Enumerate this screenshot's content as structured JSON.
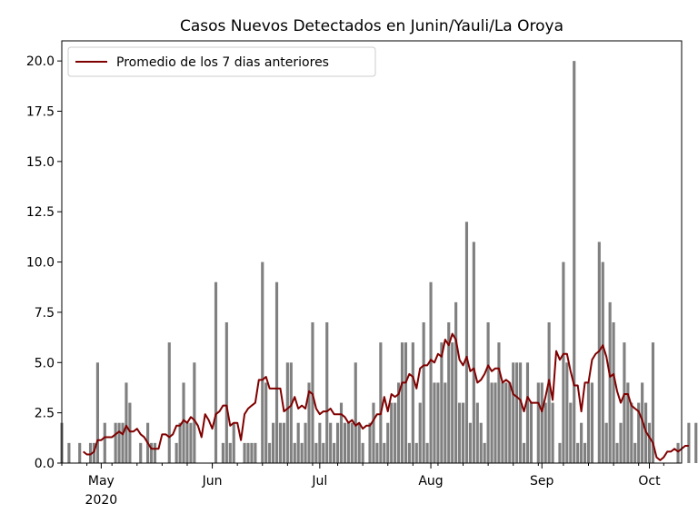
{
  "chart_data": {
    "type": "bar",
    "title": "Casos Nuevos Detectados en Junin/Yauli/La Oroya",
    "xlabel": "",
    "ylabel": "",
    "ylim": [
      0,
      21
    ],
    "x_start": "2020-04-20",
    "x_end": "2020-10-10",
    "y_ticks": [
      "0.0",
      "2.5",
      "5.0",
      "7.5",
      "10.0",
      "12.5",
      "15.0",
      "17.5",
      "20.0"
    ],
    "x_ticks": [
      {
        "date": "2020-05-01",
        "label": "May",
        "sublabel": "2020"
      },
      {
        "date": "2020-06-01",
        "label": "Jun",
        "sublabel": ""
      },
      {
        "date": "2020-07-01",
        "label": "Jul",
        "sublabel": ""
      },
      {
        "date": "2020-08-01",
        "label": "Aug",
        "sublabel": ""
      },
      {
        "date": "2020-09-01",
        "label": "Sep",
        "sublabel": ""
      },
      {
        "date": "2020-10-01",
        "label": "Oct",
        "sublabel": ""
      }
    ],
    "legend": {
      "placement": "top-left",
      "entries": [
        "Promedio de los 7 dias anteriores"
      ]
    },
    "grid": false,
    "colors": {
      "bars": "#808080",
      "line": "#800000"
    },
    "series": [
      {
        "name": "Casos nuevos",
        "kind": "bar",
        "start_date": "2020-04-20",
        "values": [
          2,
          0,
          1,
          0,
          0,
          1,
          0,
          0,
          1,
          1,
          5,
          0,
          2,
          0,
          0,
          2,
          2,
          2,
          4,
          3,
          0,
          0,
          1,
          0,
          2,
          1,
          1,
          0,
          0,
          0,
          6,
          0,
          1,
          2,
          4,
          2,
          2,
          5,
          0,
          0,
          0,
          0,
          0,
          9,
          0,
          1,
          7,
          1,
          2,
          0,
          0,
          1,
          1,
          1,
          1,
          0,
          10,
          4,
          1,
          2,
          9,
          2,
          2,
          5,
          5,
          1,
          2,
          1,
          2,
          4,
          7,
          1,
          2,
          1,
          7,
          2,
          1,
          2,
          3,
          2,
          2,
          2,
          5,
          2,
          1,
          0,
          2,
          3,
          1,
          6,
          1,
          2,
          3,
          3,
          4,
          6,
          6,
          1,
          6,
          1,
          3,
          7,
          1,
          9,
          4,
          4,
          6,
          4,
          7,
          6,
          8,
          3,
          3,
          12,
          2,
          11,
          3,
          2,
          1,
          7,
          4,
          4,
          6,
          4,
          4,
          4,
          5,
          5,
          5,
          1,
          5,
          3,
          0,
          4,
          4,
          3,
          7,
          3,
          0,
          1,
          10,
          5,
          3,
          20,
          1,
          2,
          1,
          4,
          4,
          0,
          11,
          10,
          2,
          8,
          7,
          1,
          2,
          6,
          4,
          3,
          1,
          3,
          4,
          3,
          2,
          6,
          0,
          0,
          0,
          0,
          0,
          0,
          1,
          0,
          0,
          2,
          0,
          2,
          0,
          1,
          1,
          0,
          2
        ]
      },
      {
        "name": "Promedio de los 7 dias anteriores",
        "kind": "line",
        "start_date": "2020-04-26",
        "values": [
          0.57,
          0.43,
          0.43,
          0.57,
          1.14,
          1.14,
          1.29,
          1.29,
          1.29,
          1.43,
          1.57,
          1.43,
          1.86,
          1.57,
          1.57,
          1.71,
          1.43,
          1.29,
          1.0,
          0.71,
          0.71,
          0.71,
          1.43,
          1.43,
          1.29,
          1.43,
          1.86,
          1.86,
          2.14,
          2.0,
          2.29,
          2.14,
          1.86,
          1.29,
          2.43,
          2.14,
          1.71,
          2.43,
          2.57,
          2.86,
          2.86,
          1.86,
          2.0,
          2.0,
          1.14,
          2.43,
          2.71,
          2.86,
          3.0,
          4.14,
          4.14,
          4.29,
          3.71,
          3.71,
          3.71,
          3.71,
          2.57,
          2.71,
          2.86,
          3.29,
          2.71,
          2.86,
          2.71,
          3.57,
          3.43,
          2.71,
          2.43,
          2.57,
          2.57,
          2.71,
          2.43,
          2.43,
          2.43,
          2.29,
          2.0,
          2.14,
          1.86,
          2.0,
          1.71,
          1.86,
          1.86,
          2.14,
          2.43,
          2.43,
          3.29,
          2.57,
          3.43,
          3.29,
          3.43,
          4.0,
          4.0,
          4.43,
          4.29,
          3.71,
          4.71,
          4.86,
          4.86,
          5.14,
          5.0,
          5.43,
          5.29,
          6.14,
          5.86,
          6.43,
          6.14,
          5.14,
          4.86,
          5.29,
          4.57,
          4.71,
          4.0,
          4.14,
          4.43,
          4.86,
          4.57,
          4.71,
          4.71,
          4.0,
          4.14,
          4.0,
          3.43,
          3.29,
          3.14,
          2.57,
          3.29,
          3.0,
          3.0,
          3.0,
          2.57,
          3.29,
          4.14,
          3.14,
          5.57,
          5.14,
          5.43,
          5.43,
          4.57,
          3.86,
          3.86,
          2.57,
          4.0,
          4.0,
          5.14,
          5.43,
          5.57,
          5.86,
          5.29,
          4.29,
          4.43,
          3.57,
          3.0,
          3.43,
          3.43,
          2.86,
          2.71,
          2.57,
          2.14,
          1.57,
          1.29,
          1.0,
          0.29,
          0.14,
          0.29,
          0.57,
          0.57,
          0.71,
          0.57,
          0.71,
          0.86,
          0.86
        ]
      }
    ]
  }
}
